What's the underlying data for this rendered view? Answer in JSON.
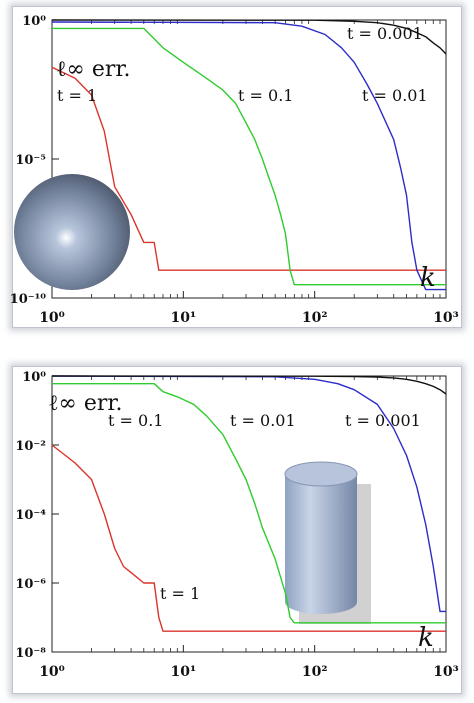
{
  "chart_data": [
    {
      "type": "line",
      "ylabel": "ℓ∞ err.",
      "xlabel": "k",
      "xscale": "log",
      "yscale": "log",
      "xlim": [
        1,
        1000
      ],
      "ylim": [
        1e-10,
        1
      ],
      "xticks": [
        "10⁰",
        "10¹",
        "10²",
        "10³"
      ],
      "yticks": [
        "10⁰",
        "10⁻⁵",
        "10⁻¹⁰"
      ],
      "shape_icon": "sphere-icon",
      "series": [
        {
          "name": "t = 1",
          "color": "#d9352c",
          "x": [
            1,
            1.5,
            2,
            2.5,
            3,
            4,
            5,
            6,
            6.5,
            1000
          ],
          "y": [
            0.02,
            0.008,
            0.002,
            0.0001,
            1e-06,
            1e-07,
            1e-08,
            1e-08,
            1e-09,
            1e-09
          ]
        },
        {
          "name": "t = 0.1",
          "color": "#2ecc2e",
          "x": [
            1,
            5,
            7,
            10,
            15,
            20,
            25,
            30,
            35,
            40,
            45,
            50,
            55,
            60,
            65,
            70,
            1000
          ],
          "y": [
            0.5,
            0.5,
            0.1,
            0.03,
            0.008,
            0.003,
            0.001,
            0.0002,
            5e-05,
            1e-05,
            2e-06,
            5e-07,
            1e-07,
            2e-08,
            1e-09,
            3e-10,
            3e-10
          ]
        },
        {
          "name": "t = 0.01",
          "color": "#2c2cc8",
          "x": [
            1,
            50,
            80,
            120,
            160,
            200,
            250,
            300,
            350,
            400,
            450,
            500,
            550,
            600,
            700,
            1000
          ],
          "y": [
            0.85,
            0.8,
            0.6,
            0.3,
            0.1,
            0.03,
            0.005,
            0.001,
            0.0002,
            5e-05,
            5e-06,
            5e-07,
            1e-08,
            1e-09,
            2e-10,
            2e-10
          ]
        },
        {
          "name": "t = 0.001",
          "color": "#111111",
          "x": [
            1,
            100,
            200,
            300,
            400,
            500,
            600,
            700,
            800,
            900,
            1000
          ],
          "y": [
            1,
            0.98,
            0.9,
            0.8,
            0.65,
            0.5,
            0.35,
            0.25,
            0.15,
            0.1,
            0.06
          ]
        }
      ]
    },
    {
      "type": "line",
      "ylabel": "ℓ∞ err.",
      "xlabel": "k",
      "xscale": "log",
      "yscale": "log",
      "xlim": [
        1,
        1000
      ],
      "ylim": [
        1e-08,
        1
      ],
      "xticks": [
        "10⁰",
        "10¹",
        "10²",
        "10³"
      ],
      "yticks": [
        "10⁰",
        "10⁻²",
        "10⁻⁴",
        "10⁻⁶",
        "10⁻⁸"
      ],
      "shape_icon": "cylinder-icon",
      "series": [
        {
          "name": "t = 1",
          "color": "#d9352c",
          "x": [
            1,
            1.5,
            2,
            2.5,
            3,
            3.5,
            4,
            5,
            6,
            6.5,
            7,
            1000
          ],
          "y": [
            0.01,
            0.003,
            0.001,
            0.0001,
            1e-05,
            3e-06,
            2e-06,
            1e-06,
            1e-06,
            1e-07,
            4e-08,
            4e-08
          ]
        },
        {
          "name": "t = 0.1",
          "color": "#2ecc2e",
          "x": [
            1,
            6,
            7,
            9,
            12,
            15,
            20,
            25,
            30,
            35,
            40,
            50,
            60,
            65,
            70,
            1000
          ],
          "y": [
            0.6,
            0.6,
            0.35,
            0.25,
            0.15,
            0.07,
            0.02,
            0.004,
            0.001,
            0.0002,
            4e-05,
            5e-06,
            5e-07,
            1e-07,
            7e-08,
            7e-08
          ]
        },
        {
          "name": "t = 0.01",
          "color": "#2c2cc8",
          "x": [
            1,
            50,
            100,
            150,
            200,
            300,
            400,
            500,
            600,
            700,
            800,
            900,
            1000
          ],
          "y": [
            1,
            0.95,
            0.8,
            0.6,
            0.4,
            0.15,
            0.03,
            0.005,
            0.0006,
            5e-05,
            3e-06,
            1.5e-07,
            1.5e-07
          ]
        },
        {
          "name": "t = 0.001",
          "color": "#111111",
          "x": [
            1,
            100,
            200,
            300,
            400,
            500,
            600,
            700,
            800,
            900,
            1000
          ],
          "y": [
            1,
            0.99,
            0.97,
            0.93,
            0.88,
            0.8,
            0.7,
            0.6,
            0.5,
            0.4,
            0.3
          ]
        }
      ]
    }
  ]
}
